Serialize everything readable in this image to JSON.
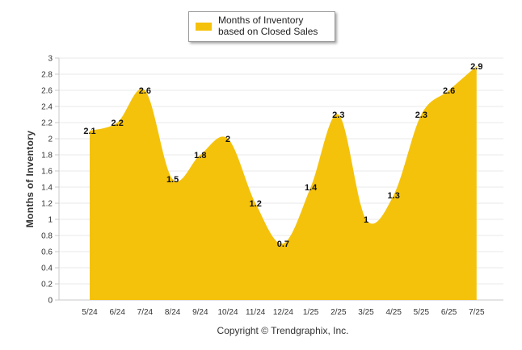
{
  "legend": {
    "label": "Months of Inventory based on Closed Sales"
  },
  "footer": {
    "copyright": "Copyright © Trendgraphix, Inc."
  },
  "colors": {
    "fill": "#f5c20b",
    "grid": "#e8e8e8",
    "axis": "#c8c8c8"
  },
  "chart_data": {
    "type": "area",
    "title": "",
    "xlabel": "",
    "ylabel": "Months of Inventory",
    "categories": [
      "5/24",
      "6/24",
      "7/24",
      "8/24",
      "9/24",
      "10/24",
      "11/24",
      "12/24",
      "1/25",
      "2/25",
      "3/25",
      "4/25",
      "5/25",
      "6/25",
      "7/25"
    ],
    "series": [
      {
        "name": "Months of Inventory based on Closed Sales",
        "values": [
          2.1,
          2.2,
          2.6,
          1.5,
          1.8,
          2,
          1.2,
          0.7,
          1.4,
          2.3,
          1,
          1.3,
          2.3,
          2.6,
          2.9
        ]
      }
    ],
    "ylim": [
      0,
      3
    ],
    "yticks": [
      "0",
      "0.2",
      "0.4",
      "0.6",
      "0.8",
      "1",
      "1.2",
      "1.4",
      "1.6",
      "1.8",
      "2",
      "2.2",
      "2.4",
      "2.6",
      "2.8",
      "3"
    ],
    "grid": true,
    "legend_position": "top-center"
  }
}
